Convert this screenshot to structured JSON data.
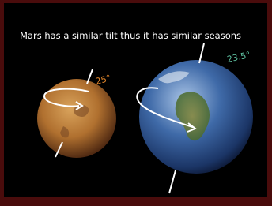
{
  "slide": {
    "title": "Mars has a similar tilt thus it has similar seasons",
    "mars_tilt": "25°",
    "earth_tilt": "23.5°"
  }
}
